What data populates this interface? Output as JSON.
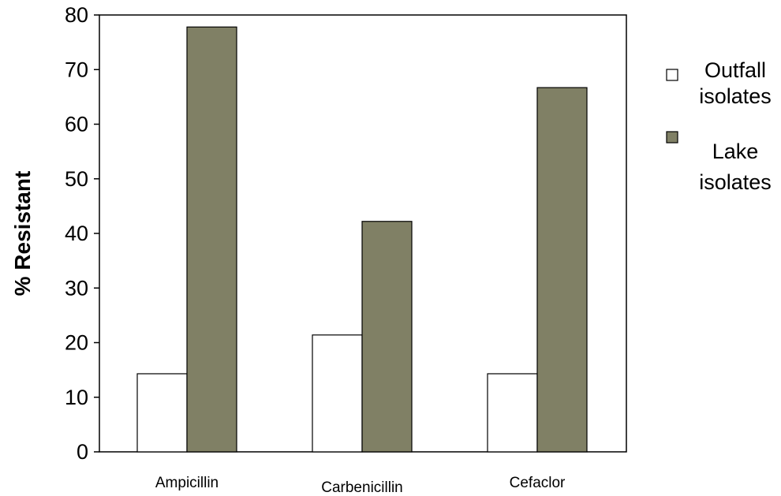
{
  "chart_data": {
    "type": "bar",
    "title": "",
    "xlabel": "",
    "ylabel": "% Resistant",
    "categories": [
      "Ampicillin",
      "Carbenicillin",
      "Cefaclor"
    ],
    "series": [
      {
        "name": "Outfall isolates",
        "values": [
          14.3,
          21.4,
          14.3
        ],
        "color": "#ffffff"
      },
      {
        "name": "Lake isolates",
        "values": [
          77.8,
          42.2,
          66.7
        ],
        "color": "#808065"
      }
    ],
    "ylim": [
      0,
      80
    ],
    "yticks": [
      "0",
      "10",
      "20",
      "30",
      "40",
      "50",
      "60",
      "70",
      "80"
    ],
    "grid": false,
    "legend_position": "right",
    "legend": [
      {
        "lines": [
          "Outfall",
          "isolates"
        ],
        "color": "#ffffff"
      },
      {
        "lines": [
          "Lake",
          "isolates"
        ],
        "color": "#808065"
      }
    ]
  }
}
